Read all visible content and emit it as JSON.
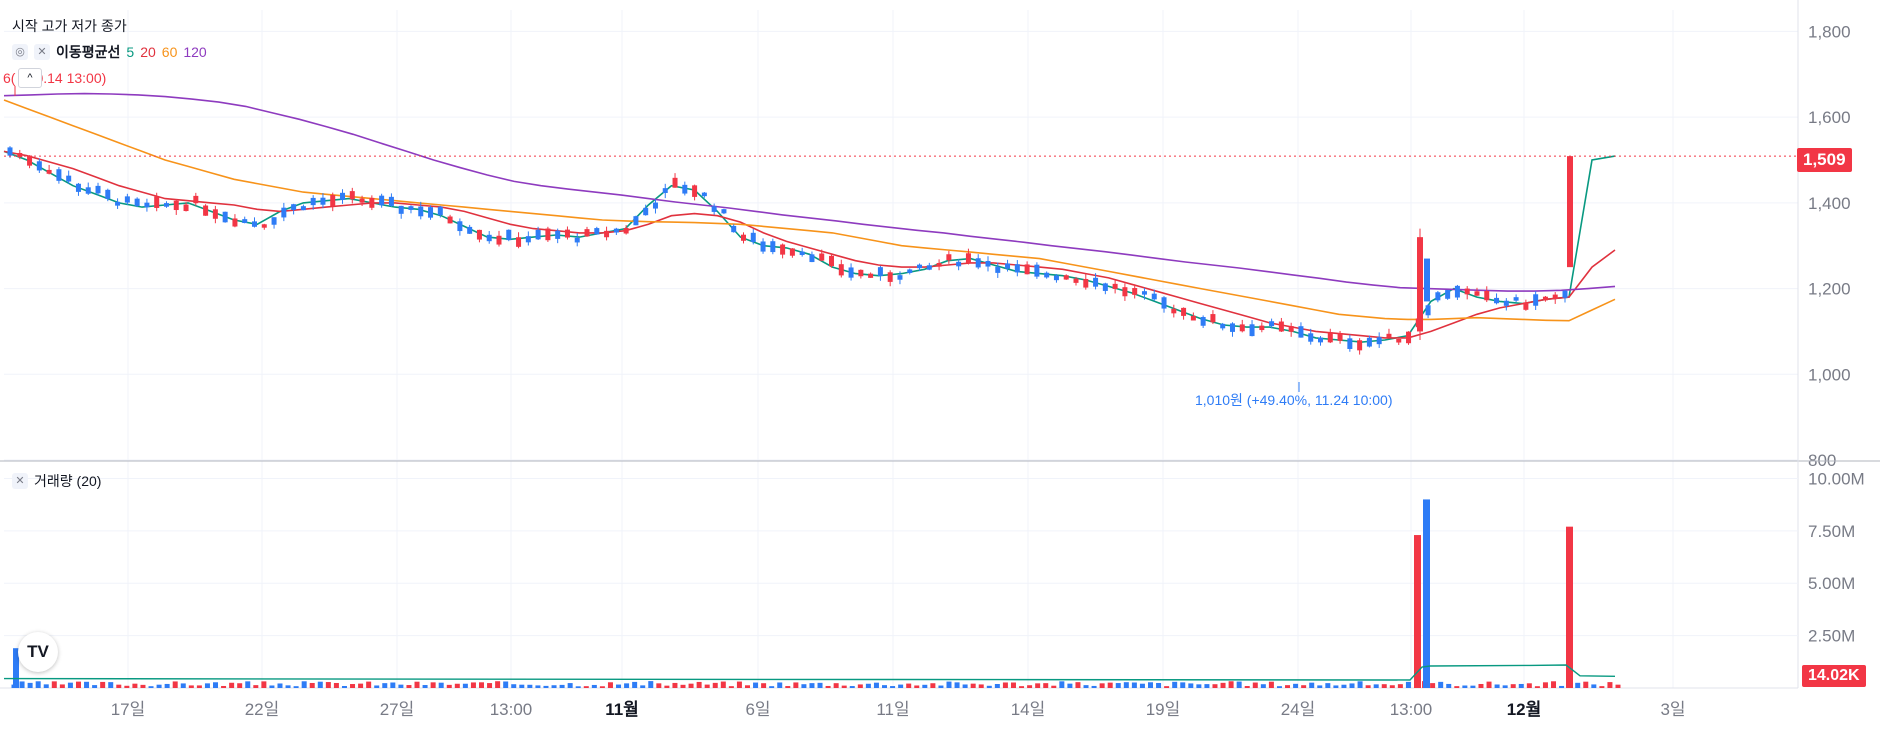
{
  "header": {
    "ohlc_label": "시작 고가 저가 종가",
    "ma_label": "이동평균선",
    "ma_periods": [
      "5",
      "20",
      "60",
      "120"
    ],
    "volume_label": "거래량 (20)"
  },
  "colors": {
    "up": "#f23645",
    "down": "#2e7cf6",
    "ma5": "#089981",
    "ma20": "#e0323e",
    "ma60": "#f7931a",
    "ma120": "#8e3bbf",
    "grid": "#f0f3fa",
    "axis_text": "#787b86"
  },
  "annotations": {
    "high_label": "6(",
    "high_suffix": "0.14 13:00)",
    "low_label": "1,010원 (+49.40%, 11.24 10:00)",
    "last_price": "1,509",
    "last_volume": "14.02K"
  },
  "chart_data": [
    {
      "type": "candlestick",
      "title": "",
      "x_ticks": [
        "17일",
        "22일",
        "27일",
        "13:00",
        "11월",
        "6일",
        "11일",
        "14일",
        "19일",
        "24일",
        "13:00",
        "12월",
        "3일"
      ],
      "y_ticks": [
        "1,800",
        "1,600",
        "1,400",
        "1,200",
        "1,000",
        "800"
      ],
      "ylim": [
        800,
        1850
      ],
      "grid": true,
      "series": [
        {
          "name": "5",
          "values": [
            1520,
            1500,
            1470,
            1440,
            1420,
            1400,
            1390,
            1395,
            1400,
            1380,
            1360,
            1350,
            1380,
            1400,
            1405,
            1410,
            1400,
            1390,
            1385,
            1370,
            1345,
            1320,
            1315,
            1320,
            1325,
            1320,
            1330,
            1340,
            1395,
            1440,
            1430,
            1380,
            1320,
            1300,
            1295,
            1280,
            1250,
            1235,
            1230,
            1235,
            1245,
            1265,
            1270,
            1255,
            1240,
            1235,
            1230,
            1220,
            1205,
            1190,
            1170,
            1150,
            1130,
            1115,
            1110,
            1110,
            1100,
            1085,
            1080,
            1075,
            1080,
            1090,
            1170,
            1200,
            1180,
            1170,
            1165,
            1175,
            1180,
            1500,
            1509
          ]
        },
        {
          "name": "20",
          "values": [
            1520,
            1510,
            1495,
            1480,
            1460,
            1440,
            1425,
            1410,
            1405,
            1400,
            1395,
            1385,
            1380,
            1385,
            1390,
            1395,
            1400,
            1400,
            1395,
            1390,
            1380,
            1365,
            1350,
            1340,
            1335,
            1330,
            1330,
            1335,
            1350,
            1370,
            1375,
            1370,
            1355,
            1330,
            1310,
            1295,
            1280,
            1265,
            1255,
            1250,
            1250,
            1255,
            1260,
            1260,
            1255,
            1250,
            1245,
            1235,
            1225,
            1210,
            1195,
            1180,
            1165,
            1150,
            1135,
            1120,
            1110,
            1100,
            1095,
            1090,
            1085,
            1085,
            1100,
            1120,
            1140,
            1155,
            1165,
            1175,
            1180,
            1250,
            1290
          ]
        },
        {
          "name": "60",
          "values": [
            1640,
            1620,
            1600,
            1580,
            1560,
            1540,
            1520,
            1500,
            1485,
            1470,
            1455,
            1445,
            1435,
            1425,
            1420,
            1415,
            1410,
            1405,
            1400,
            1395,
            1390,
            1385,
            1380,
            1375,
            1370,
            1365,
            1360,
            1358,
            1356,
            1355,
            1354,
            1352,
            1350,
            1345,
            1340,
            1335,
            1330,
            1320,
            1310,
            1300,
            1295,
            1290,
            1285,
            1280,
            1275,
            1270,
            1260,
            1250,
            1240,
            1230,
            1220,
            1210,
            1200,
            1190,
            1180,
            1170,
            1160,
            1150,
            1140,
            1135,
            1130,
            1128,
            1128,
            1130,
            1132,
            1130,
            1128,
            1126,
            1125,
            1150,
            1175
          ]
        },
        {
          "name": "120",
          "values": [
            1650,
            1652,
            1654,
            1655,
            1654,
            1652,
            1648,
            1642,
            1635,
            1625,
            1610,
            1595,
            1578,
            1560,
            1540,
            1520,
            1500,
            1482,
            1465,
            1450,
            1440,
            1432,
            1425,
            1418,
            1410,
            1402,
            1395,
            1388,
            1380,
            1372,
            1365,
            1358,
            1350,
            1343,
            1336,
            1330,
            1322,
            1315,
            1308,
            1300,
            1293,
            1286,
            1278,
            1270,
            1262,
            1255,
            1248,
            1240,
            1232,
            1224,
            1215,
            1208,
            1202,
            1200,
            1198,
            1196,
            1194,
            1194,
            1196,
            1200,
            1205
          ]
        }
      ]
    },
    {
      "type": "bar",
      "title": "",
      "y_ticks": [
        "10.00M",
        "7.50M",
        "5.00M",
        "2.50M"
      ],
      "ylim": [
        0,
        10500000
      ],
      "spikes": [
        {
          "label": "13:00",
          "up": 7300000,
          "down": 9000000
        },
        {
          "label": "12월",
          "up": 7700000
        }
      ],
      "first_bar": 1900000,
      "volume_ma": [
        450000,
        420000,
        400000,
        380000,
        1000000,
        1050000,
        1080000,
        1100000,
        580000,
        560000
      ]
    }
  ]
}
